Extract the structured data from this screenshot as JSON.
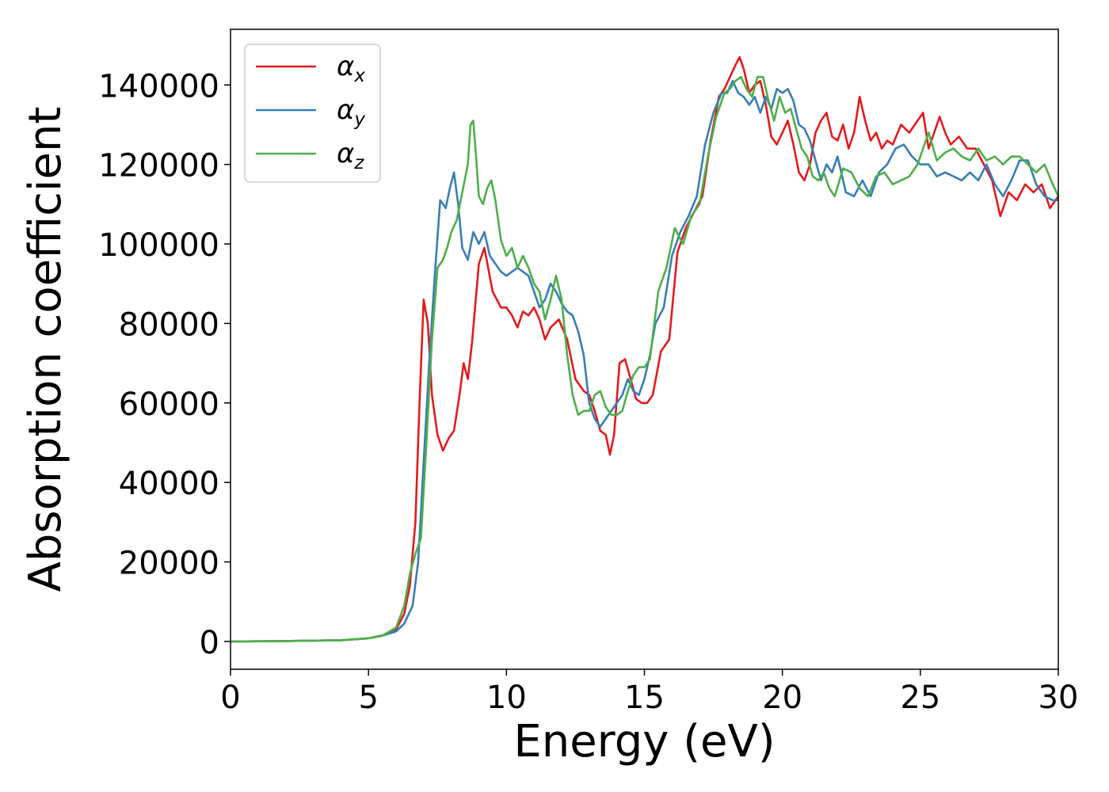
{
  "chart_data": {
    "type": "line",
    "title": "",
    "xlabel": "Energy (eV)",
    "ylabel": "Absorption coefficient",
    "xlim": [
      0,
      30
    ],
    "ylim": [
      -7000,
      154000
    ],
    "xticks": [
      0,
      5,
      10,
      15,
      20,
      25,
      30
    ],
    "yticks": [
      0,
      20000,
      40000,
      60000,
      80000,
      100000,
      120000,
      140000
    ],
    "grid": false,
    "legend_position": "top-left",
    "series": [
      {
        "name": "α_x",
        "legend_base": "α",
        "legend_sub": "x",
        "color": "#e41a1c",
        "x": [
          0,
          2,
          4,
          5,
          5.5,
          6,
          6.3,
          6.5,
          6.7,
          6.85,
          7.0,
          7.15,
          7.3,
          7.5,
          7.7,
          7.9,
          8.1,
          8.3,
          8.45,
          8.6,
          8.75,
          9.0,
          9.2,
          9.5,
          9.8,
          10.0,
          10.2,
          10.4,
          10.6,
          10.8,
          11.0,
          11.2,
          11.4,
          11.6,
          11.9,
          12.2,
          12.5,
          12.8,
          13.0,
          13.2,
          13.4,
          13.6,
          13.75,
          13.9,
          14.1,
          14.3,
          14.5,
          14.7,
          14.9,
          15.1,
          15.3,
          15.6,
          15.9,
          16.2,
          16.5,
          16.8,
          17.1,
          17.4,
          17.7,
          17.9,
          18.1,
          18.3,
          18.45,
          18.6,
          18.8,
          19.0,
          19.2,
          19.4,
          19.6,
          19.8,
          20.0,
          20.2,
          20.4,
          20.6,
          20.8,
          21.0,
          21.2,
          21.4,
          21.6,
          21.8,
          22.0,
          22.2,
          22.4,
          22.6,
          22.8,
          23.0,
          23.2,
          23.4,
          23.6,
          23.8,
          24.0,
          24.3,
          24.6,
          24.9,
          25.1,
          25.3,
          25.5,
          25.7,
          25.9,
          26.1,
          26.4,
          26.7,
          27.0,
          27.3,
          27.6,
          27.9,
          28.2,
          28.5,
          28.8,
          29.1,
          29.4,
          29.7,
          30.0
        ],
        "y": [
          0,
          100,
          300,
          800,
          1500,
          3000,
          7000,
          14000,
          30000,
          60000,
          86000,
          80000,
          62000,
          52000,
          48000,
          51000,
          53000,
          62000,
          70000,
          66000,
          75000,
          95000,
          99000,
          88000,
          84000,
          84000,
          82000,
          79000,
          83000,
          82000,
          84000,
          81000,
          76000,
          79000,
          81000,
          76000,
          66000,
          63000,
          62000,
          58000,
          53000,
          52000,
          47000,
          52000,
          70000,
          71000,
          66000,
          61000,
          60000,
          60000,
          62000,
          73000,
          76000,
          98000,
          104000,
          108000,
          112000,
          126000,
          137000,
          139000,
          142000,
          145000,
          147000,
          144000,
          138000,
          140000,
          141000,
          135000,
          127000,
          125000,
          128000,
          131000,
          125000,
          118000,
          116000,
          120000,
          128000,
          131000,
          133000,
          127000,
          126000,
          130000,
          124000,
          128000,
          137000,
          131000,
          126000,
          128000,
          124000,
          126000,
          125000,
          130000,
          128000,
          131000,
          133000,
          124000,
          128000,
          132000,
          128000,
          125000,
          127000,
          124000,
          124000,
          120000,
          116000,
          107000,
          113000,
          111000,
          115000,
          113000,
          115000,
          109000,
          112000
        ]
      },
      {
        "name": "α_y",
        "legend_base": "α",
        "legend_sub": "y",
        "color": "#377eb8",
        "x": [
          0,
          2,
          4,
          5,
          5.5,
          6,
          6.3,
          6.6,
          6.8,
          7.0,
          7.2,
          7.4,
          7.6,
          7.8,
          7.95,
          8.1,
          8.25,
          8.4,
          8.6,
          8.8,
          9.0,
          9.2,
          9.4,
          9.6,
          9.8,
          10.0,
          10.2,
          10.4,
          10.6,
          10.8,
          11.0,
          11.2,
          11.4,
          11.6,
          11.8,
          12.0,
          12.2,
          12.4,
          12.6,
          12.8,
          13.0,
          13.2,
          13.4,
          13.6,
          13.8,
          14.0,
          14.2,
          14.4,
          14.6,
          14.8,
          15.0,
          15.2,
          15.4,
          15.7,
          16.0,
          16.3,
          16.6,
          16.9,
          17.2,
          17.5,
          17.8,
          18.0,
          18.2,
          18.4,
          18.6,
          18.8,
          19.0,
          19.2,
          19.4,
          19.6,
          19.8,
          20.0,
          20.2,
          20.4,
          20.6,
          20.8,
          21.0,
          21.2,
          21.4,
          21.6,
          21.8,
          22.0,
          22.3,
          22.6,
          22.9,
          23.2,
          23.5,
          23.8,
          24.1,
          24.4,
          24.7,
          25.0,
          25.3,
          25.6,
          25.9,
          26.2,
          26.5,
          26.8,
          27.1,
          27.4,
          27.7,
          28.0,
          28.3,
          28.6,
          28.9,
          29.2,
          29.5,
          29.8,
          30.0
        ],
        "y": [
          0,
          100,
          300,
          800,
          1400,
          2500,
          4500,
          9000,
          20000,
          45000,
          70000,
          92000,
          111000,
          109000,
          114000,
          118000,
          110000,
          99000,
          96000,
          103000,
          100000,
          103000,
          97000,
          95000,
          93000,
          92000,
          93000,
          94000,
          93000,
          92000,
          88000,
          84000,
          86000,
          90000,
          88000,
          85000,
          83000,
          82000,
          78000,
          72000,
          60000,
          56000,
          54000,
          56000,
          58000,
          60000,
          62000,
          66000,
          63000,
          62000,
          66000,
          72000,
          80000,
          84000,
          97000,
          103000,
          107000,
          112000,
          125000,
          133000,
          138000,
          138000,
          141000,
          138000,
          137000,
          135000,
          137000,
          133000,
          137000,
          134000,
          139000,
          138000,
          139000,
          136000,
          130000,
          129000,
          126000,
          121000,
          116000,
          120000,
          118000,
          122000,
          113000,
          112000,
          116000,
          112000,
          118000,
          120000,
          124000,
          125000,
          122000,
          120000,
          120000,
          117000,
          118000,
          117000,
          116000,
          118000,
          116000,
          120000,
          115000,
          112000,
          116000,
          121000,
          121000,
          115000,
          112000,
          111000,
          111000
        ]
      },
      {
        "name": "α_z",
        "legend_base": "α",
        "legend_sub": "z",
        "color": "#4daf4a",
        "x": [
          0,
          2,
          4,
          5,
          5.5,
          6,
          6.3,
          6.5,
          6.7,
          6.9,
          7.1,
          7.3,
          7.5,
          7.7,
          7.85,
          8.0,
          8.2,
          8.4,
          8.6,
          8.7,
          8.8,
          8.9,
          9.0,
          9.15,
          9.3,
          9.45,
          9.6,
          9.8,
          10.0,
          10.2,
          10.4,
          10.6,
          10.8,
          11.0,
          11.2,
          11.4,
          11.6,
          11.8,
          12.0,
          12.2,
          12.4,
          12.6,
          12.8,
          13.0,
          13.2,
          13.4,
          13.6,
          13.8,
          14.0,
          14.2,
          14.4,
          14.6,
          14.8,
          15.0,
          15.2,
          15.5,
          15.8,
          16.1,
          16.4,
          16.7,
          17.0,
          17.3,
          17.6,
          17.9,
          18.1,
          18.3,
          18.5,
          18.7,
          18.9,
          19.1,
          19.3,
          19.5,
          19.7,
          19.9,
          20.1,
          20.3,
          20.5,
          20.7,
          20.9,
          21.1,
          21.3,
          21.5,
          21.7,
          21.9,
          22.2,
          22.5,
          22.8,
          23.1,
          23.4,
          23.7,
          24.0,
          24.3,
          24.6,
          24.9,
          25.1,
          25.3,
          25.6,
          25.9,
          26.2,
          26.5,
          26.8,
          27.1,
          27.4,
          27.7,
          28.0,
          28.3,
          28.6,
          28.9,
          29.2,
          29.5,
          29.8,
          30.0
        ],
        "y": [
          0,
          100,
          300,
          800,
          1400,
          3500,
          9000,
          17000,
          22000,
          26000,
          50000,
          76000,
          94000,
          96000,
          99000,
          103000,
          106000,
          113000,
          120000,
          130000,
          131000,
          122000,
          112000,
          110000,
          114000,
          116000,
          111000,
          101000,
          97000,
          99000,
          94000,
          97000,
          94000,
          90000,
          88000,
          81000,
          86000,
          92000,
          86000,
          72000,
          62000,
          57000,
          58000,
          58000,
          62000,
          63000,
          59000,
          57000,
          57000,
          58000,
          63000,
          67000,
          69000,
          69000,
          71000,
          88000,
          94000,
          104000,
          100000,
          107000,
          110000,
          122000,
          132000,
          138000,
          139000,
          141000,
          142000,
          139000,
          137000,
          142000,
          142000,
          136000,
          131000,
          137000,
          133000,
          134000,
          129000,
          124000,
          122000,
          117000,
          116000,
          118000,
          114000,
          112000,
          119000,
          118000,
          114000,
          112000,
          117000,
          118000,
          115000,
          116000,
          117000,
          120000,
          124000,
          128000,
          121000,
          123000,
          124000,
          122000,
          121000,
          124000,
          121000,
          122000,
          120000,
          122000,
          122000,
          120000,
          118000,
          120000,
          115000,
          112000
        ]
      }
    ]
  }
}
